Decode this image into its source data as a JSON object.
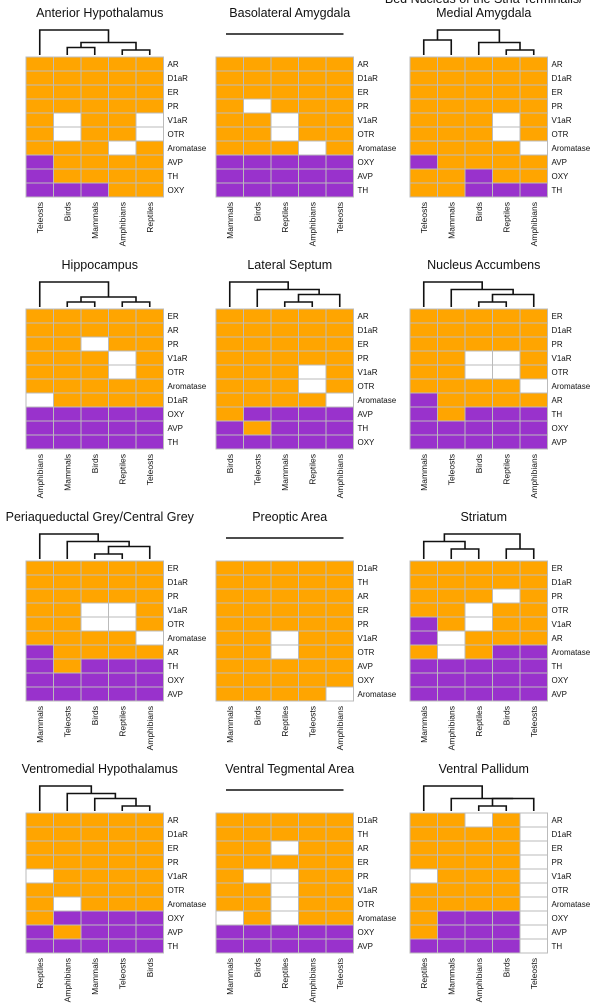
{
  "colors": {
    "low": "#ffa500",
    "high": "#9932cc",
    "none": "#ffffff",
    "grid": "#bbbbbb"
  },
  "chart_data": [
    {
      "type": "heatmap",
      "title": [
        "Anterior Hypothalamus"
      ],
      "columns": [
        "Teleosts",
        "Birds",
        "Mammals",
        "Amphibians",
        "Reptiles"
      ],
      "rows": [
        "AR",
        "D1aR",
        "ER",
        "PR",
        "V1aR",
        "OTR",
        "Aromatase",
        "AVP",
        "TH",
        "OXY"
      ],
      "values": [
        [
          0,
          0,
          0,
          0,
          0
        ],
        [
          0,
          0,
          0,
          0,
          0
        ],
        [
          0,
          0,
          0,
          0,
          0
        ],
        [
          0,
          0,
          0,
          0,
          0
        ],
        [
          0,
          -1,
          0,
          0,
          -1
        ],
        [
          0,
          -1,
          0,
          0,
          -1
        ],
        [
          0,
          0,
          0,
          -1,
          0
        ],
        [
          1,
          0,
          0,
          0,
          0
        ],
        [
          1,
          0,
          0,
          0,
          0
        ],
        [
          1,
          1,
          1,
          0,
          0
        ]
      ],
      "tree": [
        [
          1,
          2,
          0.7
        ],
        [
          3,
          4,
          0.8
        ],
        [
          5,
          6,
          0.5
        ],
        [
          0,
          7,
          0
        ]
      ]
    },
    {
      "type": "heatmap",
      "title": [
        "Basolateral Amygdala"
      ],
      "columns": [
        "Mammals",
        "Birds",
        "Reptiles",
        "Amphibians",
        "Teleosts"
      ],
      "rows": [
        "AR",
        "D1aR",
        "ER",
        "PR",
        "V1aR",
        "OTR",
        "Aromatase",
        "OXY",
        "AVP",
        "TH"
      ],
      "values": [
        [
          0,
          0,
          0,
          0,
          0
        ],
        [
          0,
          0,
          0,
          0,
          0
        ],
        [
          0,
          0,
          0,
          0,
          0
        ],
        [
          0,
          -1,
          0,
          0,
          0
        ],
        [
          0,
          0,
          -1,
          0,
          0
        ],
        [
          0,
          0,
          -1,
          0,
          0
        ],
        [
          0,
          0,
          0,
          -1,
          0
        ],
        [
          1,
          1,
          1,
          1,
          1
        ],
        [
          1,
          1,
          1,
          1,
          1
        ],
        [
          1,
          1,
          1,
          1,
          1
        ]
      ],
      "tree": []
    },
    {
      "type": "heatmap",
      "title": [
        "Bed Nucleus of the Stria Terminalis/",
        "Medial Amygdala"
      ],
      "columns": [
        "Teleosts",
        "Mammals",
        "Birds",
        "Reptiles",
        "Amphibians"
      ],
      "rows": [
        "AR",
        "D1aR",
        "ER",
        "PR",
        "V1aR",
        "OTR",
        "Aromatase",
        "AVP",
        "OXY",
        "TH"
      ],
      "values": [
        [
          0,
          0,
          0,
          0,
          0
        ],
        [
          0,
          0,
          0,
          0,
          0
        ],
        [
          0,
          0,
          0,
          0,
          0
        ],
        [
          0,
          0,
          0,
          0,
          0
        ],
        [
          0,
          0,
          0,
          -1,
          0
        ],
        [
          0,
          0,
          0,
          -1,
          0
        ],
        [
          0,
          0,
          0,
          0,
          -1
        ],
        [
          1,
          0,
          0,
          0,
          0
        ],
        [
          0,
          0,
          1,
          0,
          0
        ],
        [
          0,
          0,
          1,
          1,
          1
        ]
      ],
      "tree": [
        [
          0,
          1,
          0.4
        ],
        [
          3,
          4,
          0.8
        ],
        [
          2,
          6,
          0.5
        ],
        [
          5,
          7,
          0
        ]
      ]
    },
    {
      "type": "heatmap",
      "title": [
        "Hippocampus"
      ],
      "columns": [
        "Amphibians",
        "Mammals",
        "Birds",
        "Reptiles",
        "Teleosts"
      ],
      "rows": [
        "ER",
        "AR",
        "PR",
        "V1aR",
        "OTR",
        "Aromatase",
        "D1aR",
        "OXY",
        "AVP",
        "TH"
      ],
      "values": [
        [
          0,
          0,
          0,
          0,
          0
        ],
        [
          0,
          0,
          0,
          0,
          0
        ],
        [
          0,
          0,
          -1,
          0,
          0
        ],
        [
          0,
          0,
          0,
          -1,
          0
        ],
        [
          0,
          0,
          0,
          -1,
          0
        ],
        [
          0,
          0,
          0,
          0,
          0
        ],
        [
          -1,
          0,
          0,
          0,
          0
        ],
        [
          1,
          1,
          1,
          1,
          1
        ],
        [
          1,
          1,
          1,
          1,
          1
        ],
        [
          1,
          1,
          1,
          1,
          1
        ]
      ],
      "tree": [
        [
          1,
          2,
          0.8
        ],
        [
          3,
          4,
          0.8
        ],
        [
          5,
          6,
          0.6
        ],
        [
          0,
          7,
          0
        ]
      ]
    },
    {
      "type": "heatmap",
      "title": [
        "Lateral Septum"
      ],
      "columns": [
        "Birds",
        "Teleosts",
        "Mammals",
        "Reptiles",
        "Amphibians"
      ],
      "rows": [
        "AR",
        "D1aR",
        "ER",
        "PR",
        "V1aR",
        "OTR",
        "Aromatase",
        "AVP",
        "TH",
        "OXY"
      ],
      "values": [
        [
          0,
          0,
          0,
          0,
          0
        ],
        [
          0,
          0,
          0,
          0,
          0
        ],
        [
          0,
          0,
          0,
          0,
          0
        ],
        [
          0,
          0,
          0,
          0,
          0
        ],
        [
          0,
          0,
          0,
          -1,
          0
        ],
        [
          0,
          0,
          0,
          -1,
          0
        ],
        [
          0,
          0,
          0,
          0,
          -1
        ],
        [
          0,
          1,
          1,
          1,
          1
        ],
        [
          1,
          0,
          1,
          1,
          1
        ],
        [
          1,
          1,
          1,
          1,
          1
        ]
      ],
      "tree": [
        [
          2,
          3,
          0.8
        ],
        [
          4,
          5,
          0.5
        ],
        [
          1,
          6,
          0.3
        ],
        [
          0,
          7,
          0
        ]
      ]
    },
    {
      "type": "heatmap",
      "title": [
        "Nucleus Accumbens"
      ],
      "columns": [
        "Mammals",
        "Teleosts",
        "Birds",
        "Reptiles",
        "Amphibians"
      ],
      "rows": [
        "ER",
        "D1aR",
        "PR",
        "V1aR",
        "OTR",
        "Aromatase",
        "AR",
        "TH",
        "OXY",
        "AVP"
      ],
      "values": [
        [
          0,
          0,
          0,
          0,
          0
        ],
        [
          0,
          0,
          0,
          0,
          0
        ],
        [
          0,
          0,
          0,
          0,
          0
        ],
        [
          0,
          0,
          -1,
          -1,
          0
        ],
        [
          0,
          0,
          -1,
          -1,
          0
        ],
        [
          0,
          0,
          0,
          0,
          -1
        ],
        [
          1,
          0,
          0,
          0,
          0
        ],
        [
          1,
          0,
          1,
          1,
          1
        ],
        [
          1,
          1,
          1,
          1,
          1
        ],
        [
          1,
          1,
          1,
          1,
          1
        ]
      ],
      "tree": [
        [
          2,
          3,
          0.8
        ],
        [
          4,
          5,
          0.5
        ],
        [
          1,
          6,
          0.3
        ],
        [
          0,
          7,
          0
        ]
      ]
    },
    {
      "type": "heatmap",
      "title": [
        "Periaqueductal Grey/Central Grey"
      ],
      "columns": [
        "Mammals",
        "Teleosts",
        "Birds",
        "Reptiles",
        "Amphibians"
      ],
      "rows": [
        "ER",
        "D1aR",
        "PR",
        "V1aR",
        "OTR",
        "Aromatase",
        "AR",
        "TH",
        "OXY",
        "AVP"
      ],
      "values": [
        [
          0,
          0,
          0,
          0,
          0
        ],
        [
          0,
          0,
          0,
          0,
          0
        ],
        [
          0,
          0,
          0,
          0,
          0
        ],
        [
          0,
          0,
          -1,
          -1,
          0
        ],
        [
          0,
          0,
          -1,
          -1,
          0
        ],
        [
          0,
          0,
          0,
          0,
          -1
        ],
        [
          1,
          0,
          0,
          0,
          0
        ],
        [
          1,
          0,
          1,
          1,
          1
        ],
        [
          1,
          1,
          1,
          1,
          1
        ],
        [
          1,
          1,
          1,
          1,
          1
        ]
      ],
      "tree": [
        [
          2,
          3,
          0.8
        ],
        [
          4,
          5,
          0.5
        ],
        [
          1,
          6,
          0.3
        ],
        [
          0,
          7,
          0
        ]
      ]
    },
    {
      "type": "heatmap",
      "title": [
        "Preoptic Area"
      ],
      "columns": [
        "Mammals",
        "Birds",
        "Reptiles",
        "Teleosts",
        "Amphibians"
      ],
      "rows": [
        "D1aR",
        "TH",
        "AR",
        "ER",
        "PR",
        "V1aR",
        "OTR",
        "AVP",
        "OXY",
        "Aromatase"
      ],
      "values": [
        [
          0,
          0,
          0,
          0,
          0
        ],
        [
          0,
          0,
          0,
          0,
          0
        ],
        [
          0,
          0,
          0,
          0,
          0
        ],
        [
          0,
          0,
          0,
          0,
          0
        ],
        [
          0,
          0,
          0,
          0,
          0
        ],
        [
          0,
          0,
          -1,
          0,
          0
        ],
        [
          0,
          0,
          -1,
          0,
          0
        ],
        [
          0,
          0,
          0,
          0,
          0
        ],
        [
          0,
          0,
          0,
          0,
          0
        ],
        [
          0,
          0,
          0,
          0,
          -1
        ]
      ],
      "tree": []
    },
    {
      "type": "heatmap",
      "title": [
        "Striatum"
      ],
      "columns": [
        "Mammals",
        "Amphibians",
        "Reptiles",
        "Birds",
        "Teleosts"
      ],
      "rows": [
        "ER",
        "D1aR",
        "PR",
        "OTR",
        "V1aR",
        "AR",
        "Aromatase",
        "TH",
        "OXY",
        "AVP"
      ],
      "values": [
        [
          0,
          0,
          0,
          0,
          0
        ],
        [
          0,
          0,
          0,
          0,
          0
        ],
        [
          0,
          0,
          0,
          -1,
          0
        ],
        [
          0,
          0,
          -1,
          0,
          0
        ],
        [
          1,
          0,
          -1,
          0,
          0
        ],
        [
          1,
          -1,
          0,
          0,
          0
        ],
        [
          0,
          -1,
          0,
          1,
          1
        ],
        [
          1,
          1,
          1,
          1,
          1
        ],
        [
          1,
          1,
          1,
          1,
          1
        ],
        [
          1,
          1,
          1,
          1,
          1
        ]
      ],
      "tree": [
        [
          1,
          2,
          0.6
        ],
        [
          3,
          4,
          0.6
        ],
        [
          0,
          5,
          0.3
        ],
        [
          6,
          7,
          0
        ]
      ]
    },
    {
      "type": "heatmap",
      "title": [
        "Ventromedial Hypothalamus"
      ],
      "columns": [
        "Reptiles",
        "Amphibians",
        "Mammals",
        "Teleosts",
        "Birds"
      ],
      "rows": [
        "AR",
        "D1aR",
        "ER",
        "PR",
        "V1aR",
        "OTR",
        "Aromatase",
        "OXY",
        "AVP",
        "TH"
      ],
      "values": [
        [
          0,
          0,
          0,
          0,
          0
        ],
        [
          0,
          0,
          0,
          0,
          0
        ],
        [
          0,
          0,
          0,
          0,
          0
        ],
        [
          0,
          0,
          0,
          0,
          0
        ],
        [
          -1,
          0,
          0,
          0,
          0
        ],
        [
          0,
          0,
          0,
          0,
          0
        ],
        [
          0,
          -1,
          0,
          0,
          0
        ],
        [
          0,
          1,
          1,
          1,
          1
        ],
        [
          1,
          0,
          1,
          1,
          1
        ],
        [
          1,
          1,
          1,
          1,
          1
        ]
      ],
      "tree": [
        [
          3,
          4,
          0.8
        ],
        [
          2,
          5,
          0.5
        ],
        [
          1,
          6,
          0.3
        ],
        [
          0,
          7,
          0
        ]
      ]
    },
    {
      "type": "heatmap",
      "title": [
        "Ventral Tegmental Area"
      ],
      "columns": [
        "Mammals",
        "Birds",
        "Reptiles",
        "Amphibians",
        "Teleosts"
      ],
      "rows": [
        "D1aR",
        "TH",
        "AR",
        "ER",
        "PR",
        "V1aR",
        "OTR",
        "Aromatase",
        "OXY",
        "AVP"
      ],
      "values": [
        [
          0,
          0,
          0,
          0,
          0
        ],
        [
          0,
          0,
          0,
          0,
          0
        ],
        [
          0,
          0,
          -1,
          0,
          0
        ],
        [
          0,
          0,
          0,
          0,
          0
        ],
        [
          0,
          -1,
          -1,
          0,
          0
        ],
        [
          0,
          0,
          -1,
          0,
          0
        ],
        [
          0,
          0,
          -1,
          0,
          0
        ],
        [
          -1,
          0,
          -1,
          0,
          0
        ],
        [
          1,
          1,
          1,
          1,
          1
        ],
        [
          1,
          1,
          1,
          1,
          1
        ]
      ],
      "tree": []
    },
    {
      "type": "heatmap",
      "title": [
        "Ventral Pallidum"
      ],
      "columns": [
        "Reptiles",
        "Mammals",
        "Amphibians",
        "Birds",
        "Teleosts"
      ],
      "rows": [
        "AR",
        "D1aR",
        "ER",
        "PR",
        "V1aR",
        "OTR",
        "Aromatase",
        "OXY",
        "AVP",
        "TH"
      ],
      "values": [
        [
          0,
          0,
          -1,
          0,
          -1
        ],
        [
          0,
          0,
          0,
          0,
          -1
        ],
        [
          0,
          0,
          0,
          0,
          -1
        ],
        [
          0,
          0,
          0,
          0,
          -1
        ],
        [
          -1,
          0,
          0,
          0,
          -1
        ],
        [
          0,
          0,
          0,
          0,
          -1
        ],
        [
          0,
          0,
          0,
          0,
          -1
        ],
        [
          0,
          1,
          1,
          1,
          -1
        ],
        [
          0,
          1,
          1,
          1,
          -1
        ],
        [
          1,
          1,
          1,
          1,
          -1
        ]
      ],
      "tree": [
        [
          2,
          3,
          0.8
        ],
        [
          4,
          5,
          0.5
        ],
        [
          1,
          6,
          0.5
        ],
        [
          0,
          7,
          0
        ]
      ]
    }
  ]
}
